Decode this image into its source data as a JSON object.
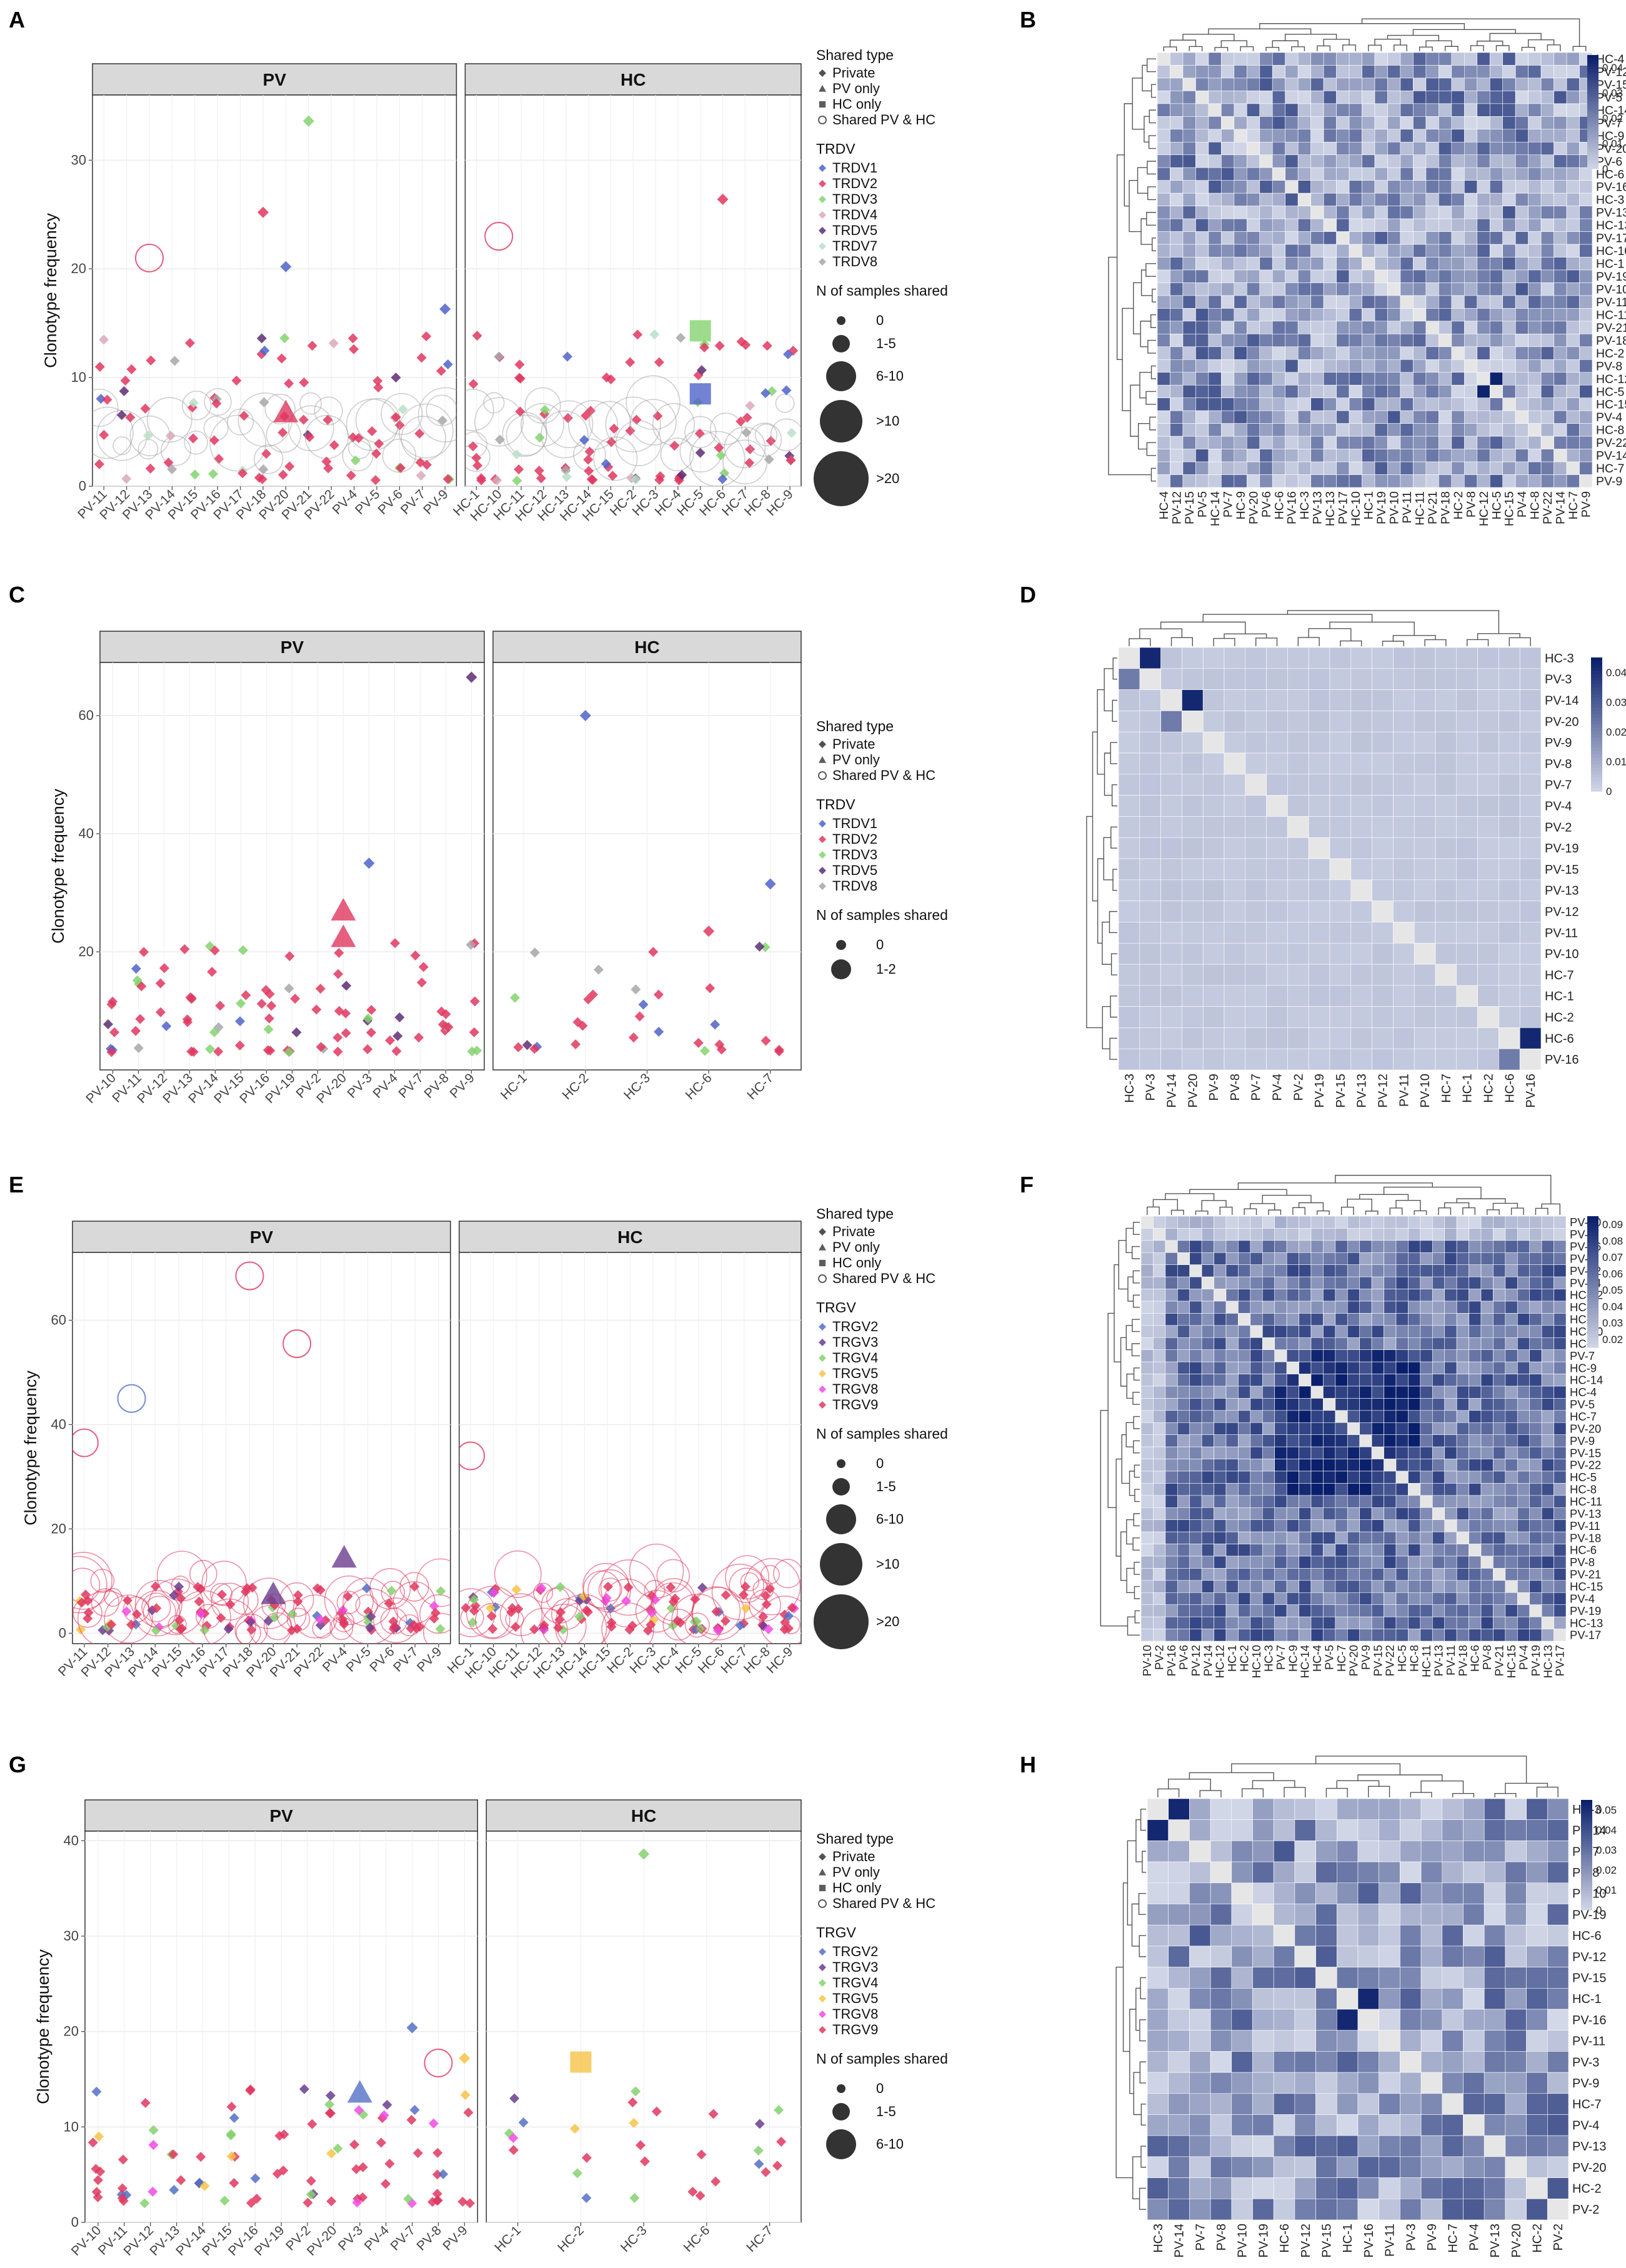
{
  "colors": {
    "TRDV1": "#4f63c9",
    "TRDV2": "#e0375f",
    "TRDV3": "#84d36f",
    "TRDV4": "#d9a9b9",
    "TRDV5": "#5e2d73",
    "TRDV7": "#b7dfc8",
    "TRDV8": "#a7a7a7",
    "TRGV2": "#5470c6",
    "TRGV3": "#6a3d8f",
    "TRGV4": "#85d16f",
    "TRGV5": "#f6c347",
    "TRGV8": "#f04be3",
    "TRGV9": "#e0375f",
    "heat_low": "#d3d8e8",
    "heat_high": "#0a1f6b",
    "strip_fill": "#d9d9d9"
  },
  "panel_labels": [
    "A",
    "B",
    "C",
    "D",
    "E",
    "F",
    "G",
    "H"
  ],
  "legend_titles": {
    "shared_type": "Shared type",
    "n_shared": "N of samples shared"
  },
  "chart_data": [
    {
      "panel": "A",
      "type": "scatter",
      "ylabel": "Clonotype frequency",
      "ylim": [
        0,
        36
      ],
      "yticks": [
        0,
        10,
        20,
        30
      ],
      "facets": [
        "PV",
        "HC"
      ],
      "categories_pv": [
        "PV-11",
        "PV-12",
        "PV-13",
        "PV-14",
        "PV-15",
        "PV-16",
        "PV-17",
        "PV-18",
        "PV-20",
        "PV-21",
        "PV-22",
        "PV-4",
        "PV-5",
        "PV-6",
        "PV-7",
        "PV-9"
      ],
      "categories_hc": [
        "HC-1",
        "HC-10",
        "HC-11",
        "HC-12",
        "HC-13",
        "HC-14",
        "HC-15",
        "HC-2",
        "HC-3",
        "HC-4",
        "HC-5",
        "HC-6",
        "HC-7",
        "HC-8",
        "HC-9"
      ],
      "legend_shared_type": [
        "Private",
        "PV only",
        "HC only",
        "Shared PV & HC"
      ],
      "legend_gene_title": "TRDV",
      "legend_genes": [
        "TRDV1",
        "TRDV2",
        "TRDV3",
        "TRDV4",
        "TRDV5",
        "TRDV7",
        "TRDV8"
      ],
      "legend_sizes": [
        "0",
        "1-5",
        "6-10",
        ">10",
        ">20"
      ],
      "highlights": [
        {
          "sample": "PV-21",
          "gene": "TRDV3",
          "y": 33.6,
          "shape": "Private"
        },
        {
          "sample": "HC-6",
          "gene": "TRDV2",
          "y": 26.4,
          "shape": "Private"
        },
        {
          "sample": "PV-18",
          "gene": "TRDV2",
          "y": 25.2,
          "shape": "Private"
        },
        {
          "sample": "PV-20",
          "gene": "TRDV1",
          "y": 20.2,
          "shape": "Private"
        },
        {
          "sample": "HC-5",
          "gene": "TRDV3",
          "y": 14.3,
          "shape": "HC only"
        },
        {
          "sample": "HC-5",
          "gene": "TRDV1",
          "y": 8.5,
          "shape": "HC only"
        },
        {
          "sample": "PV-20",
          "gene": "TRDV2",
          "y": 6.8,
          "shape": "PV only"
        },
        {
          "sample": "PV-13",
          "gene": "TRDV2",
          "y": 21.0,
          "shape": "Shared PV & HC"
        },
        {
          "sample": "HC-10",
          "gene": "TRDV2",
          "y": 23.0,
          "shape": "Shared PV & HC"
        },
        {
          "sample": "PV-9",
          "gene": "TRDV1",
          "y": 16.3,
          "shape": "Private"
        }
      ]
    },
    {
      "panel": "B",
      "type": "heatmap",
      "rows": [
        "HC-4",
        "PV-12",
        "PV-15",
        "PV-5",
        "HC-14",
        "PV-7",
        "HC-9",
        "PV-20",
        "PV-6",
        "HC-6",
        "PV-16",
        "HC-3",
        "PV-13",
        "HC-13",
        "PV-17",
        "HC-10",
        "HC-1",
        "PV-19",
        "PV-10",
        "PV-11",
        "HC-11",
        "PV-21",
        "PV-18",
        "HC-2",
        "PV-8",
        "HC-12",
        "HC-5",
        "HC-15",
        "PV-4",
        "HC-8",
        "PV-22",
        "PV-14",
        "HC-7",
        "PV-9"
      ],
      "colorbar_ticks": [
        "0.04",
        "0.03",
        "0.02",
        "0.01",
        "0"
      ],
      "scale_max": 0.045,
      "bright_pairs": [
        [
          "HC-12",
          "HC-5"
        ]
      ]
    },
    {
      "panel": "C",
      "type": "scatter",
      "ylabel": "Clonotype frequency",
      "ylim": [
        0,
        69
      ],
      "yticks": [
        20,
        40,
        60
      ],
      "facets": [
        "PV",
        "HC"
      ],
      "categories_pv": [
        "PV-10",
        "PV-11",
        "PV-12",
        "PV-13",
        "PV-14",
        "PV-15",
        "PV-16",
        "PV-19",
        "PV-2",
        "PV-20",
        "PV-3",
        "PV-4",
        "PV-7",
        "PV-8",
        "PV-9"
      ],
      "categories_hc": [
        "HC-1",
        "HC-2",
        "HC-3",
        "HC-6",
        "HC-7"
      ],
      "legend_shared_type": [
        "Private",
        "PV only",
        "Shared PV & HC"
      ],
      "legend_gene_title": "TRDV",
      "legend_genes": [
        "TRDV1",
        "TRDV2",
        "TRDV3",
        "TRDV5",
        "TRDV8"
      ],
      "legend_sizes": [
        "0",
        "1-2"
      ],
      "highlights": [
        {
          "sample": "PV-9",
          "gene": "TRDV5",
          "y": 66.5,
          "shape": "Private"
        },
        {
          "sample": "HC-2",
          "gene": "TRDV1",
          "y": 60.0,
          "shape": "Private"
        },
        {
          "sample": "PV-3",
          "gene": "TRDV1",
          "y": 35.0,
          "shape": "Private"
        },
        {
          "sample": "HC-7",
          "gene": "TRDV1",
          "y": 31.5,
          "shape": "Private"
        },
        {
          "sample": "PV-20",
          "gene": "TRDV2",
          "y": 27.0,
          "shape": "PV only"
        },
        {
          "sample": "PV-20",
          "gene": "TRDV2",
          "y": 22.5,
          "shape": "PV only"
        },
        {
          "sample": "HC-6",
          "gene": "TRDV2",
          "y": 23.5,
          "shape": "Private"
        }
      ]
    },
    {
      "panel": "D",
      "type": "heatmap",
      "rows": [
        "HC-3",
        "PV-3",
        "PV-14",
        "PV-20",
        "PV-9",
        "PV-8",
        "PV-7",
        "PV-4",
        "PV-2",
        "PV-19",
        "PV-15",
        "PV-13",
        "PV-12",
        "PV-11",
        "PV-10",
        "HC-7",
        "HC-1",
        "HC-2",
        "HC-6",
        "PV-16"
      ],
      "colorbar_ticks": [
        "0.04",
        "0.03",
        "0.02",
        "0.01",
        "0"
      ],
      "scale_max": 0.045,
      "bright_pairs": [
        [
          "HC-3",
          "PV-3"
        ],
        [
          "PV-14",
          "PV-20"
        ],
        [
          "HC-6",
          "PV-16"
        ]
      ]
    },
    {
      "panel": "E",
      "type": "scatter",
      "ylabel": "Clonotype frequency",
      "ylim": [
        -2,
        73
      ],
      "yticks": [
        0,
        20,
        40,
        60
      ],
      "facets": [
        "PV",
        "HC"
      ],
      "categories_pv": [
        "PV-11",
        "PV-12",
        "PV-13",
        "PV-14",
        "PV-15",
        "PV-16",
        "PV-17",
        "PV-18",
        "PV-20",
        "PV-21",
        "PV-22",
        "PV-4",
        "PV-5",
        "PV-6",
        "PV-7",
        "PV-9"
      ],
      "categories_hc": [
        "HC-1",
        "HC-10",
        "HC-11",
        "HC-12",
        "HC-13",
        "HC-14",
        "HC-15",
        "HC-2",
        "HC-3",
        "HC-4",
        "HC-5",
        "HC-6",
        "HC-7",
        "HC-8",
        "HC-9"
      ],
      "legend_shared_type": [
        "Private",
        "PV only",
        "HC only",
        "Shared PV & HC"
      ],
      "legend_gene_title": "TRGV",
      "legend_genes": [
        "TRGV2",
        "TRGV3",
        "TRGV4",
        "TRGV5",
        "TRGV8",
        "TRGV9"
      ],
      "legend_sizes": [
        "0",
        "1-5",
        "6-10",
        ">10",
        ">20"
      ],
      "highlights": [
        {
          "sample": "PV-18",
          "gene": "TRGV9",
          "y": 68.5,
          "shape": "Shared PV & HC"
        },
        {
          "sample": "PV-21",
          "gene": "TRGV9",
          "y": 55.5,
          "shape": "Shared PV & HC"
        },
        {
          "sample": "PV-13",
          "gene": "TRGV2",
          "y": 45.0,
          "shape": "Shared PV & HC"
        },
        {
          "sample": "PV-11",
          "gene": "TRGV9",
          "y": 36.5,
          "shape": "Shared PV & HC"
        },
        {
          "sample": "HC-1",
          "gene": "TRGV9",
          "y": 34.0,
          "shape": "Shared PV & HC"
        },
        {
          "sample": "PV-4",
          "gene": "TRGV3",
          "y": 14.5,
          "shape": "PV only"
        },
        {
          "sample": "PV-20",
          "gene": "TRGV3",
          "y": 7.5,
          "shape": "PV only"
        }
      ]
    },
    {
      "panel": "F",
      "type": "heatmap",
      "rows": [
        "PV-10",
        "PV-2",
        "PV-16",
        "PV-6",
        "PV-12",
        "PV-14",
        "HC-12",
        "HC-1",
        "HC-2",
        "HC-10",
        "HC-3",
        "PV-7",
        "HC-9",
        "HC-14",
        "HC-4",
        "PV-5",
        "HC-7",
        "PV-20",
        "PV-9",
        "PV-15",
        "PV-22",
        "HC-5",
        "HC-8",
        "HC-11",
        "PV-13",
        "PV-11",
        "PV-18",
        "HC-6",
        "PV-8",
        "PV-21",
        "HC-15",
        "PV-4",
        "PV-19",
        "HC-13",
        "PV-17"
      ],
      "colorbar_ticks": [
        "0.09",
        "0.08",
        "0.07",
        "0.06",
        "0.05",
        "0.04",
        "0.03",
        "0.02"
      ],
      "scale_min": 0.015,
      "scale_max": 0.095,
      "bright_pairs": []
    },
    {
      "panel": "G",
      "type": "scatter",
      "ylabel": "Clonotype frequency",
      "ylim": [
        0,
        41
      ],
      "yticks": [
        0,
        10,
        20,
        30,
        40
      ],
      "facets": [
        "PV",
        "HC"
      ],
      "categories_pv": [
        "PV-10",
        "PV-11",
        "PV-12",
        "PV-13",
        "PV-14",
        "PV-15",
        "PV-16",
        "PV-19",
        "PV-2",
        "PV-20",
        "PV-3",
        "PV-4",
        "PV-7",
        "PV-8",
        "PV-9"
      ],
      "categories_hc": [
        "HC-1",
        "HC-2",
        "HC-3",
        "HC-6",
        "HC-7"
      ],
      "legend_shared_type": [
        "Private",
        "PV only",
        "HC only",
        "Shared PV & HC"
      ],
      "legend_gene_title": "TRGV",
      "legend_genes": [
        "TRGV2",
        "TRGV3",
        "TRGV4",
        "TRGV5",
        "TRGV8",
        "TRGV9"
      ],
      "legend_sizes": [
        "0",
        "1-5",
        "6-10"
      ],
      "highlights": [
        {
          "sample": "HC-3",
          "gene": "TRGV4",
          "y": 38.6,
          "shape": "Private"
        },
        {
          "sample": "PV-7",
          "gene": "TRGV2",
          "y": 20.4,
          "shape": "Private"
        },
        {
          "sample": "PV-9",
          "gene": "TRGV5",
          "y": 17.2,
          "shape": "Private"
        },
        {
          "sample": "HC-2",
          "gene": "TRGV5",
          "y": 16.8,
          "shape": "HC only"
        },
        {
          "sample": "PV-3",
          "gene": "TRGV2",
          "y": 13.6,
          "shape": "PV only"
        },
        {
          "sample": "PV-8",
          "gene": "TRGV9",
          "y": 16.7,
          "shape": "Shared PV & HC"
        }
      ]
    },
    {
      "panel": "H",
      "type": "heatmap",
      "rows": [
        "HC-3",
        "PV-14",
        "PV-7",
        "PV-8",
        "PV-10",
        "PV-19",
        "HC-6",
        "PV-12",
        "PV-15",
        "HC-1",
        "PV-16",
        "PV-11",
        "PV-3",
        "PV-9",
        "HC-7",
        "PV-4",
        "PV-13",
        "PV-20",
        "HC-2",
        "PV-2"
      ],
      "colorbar_ticks": [
        "0.05",
        "0.04",
        "0.03",
        "0.02",
        "0.01",
        "0"
      ],
      "scale_max": 0.055,
      "bright_pairs": [
        [
          "HC-3",
          "PV-14"
        ],
        [
          "HC-1",
          "PV-16"
        ]
      ]
    }
  ]
}
